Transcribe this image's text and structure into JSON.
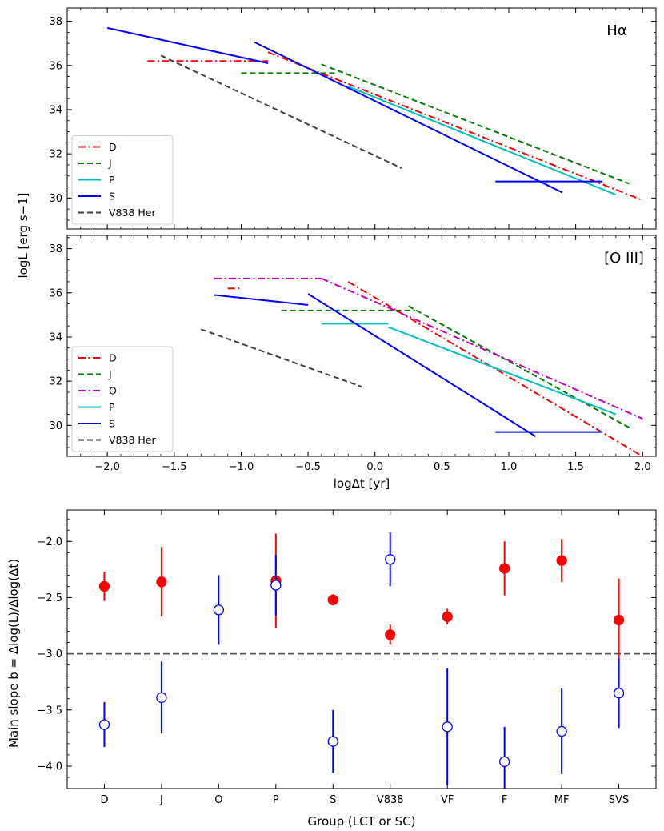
{
  "chart_data": [
    {
      "type": "line",
      "title": "Hα",
      "xlabel": "",
      "ylabel": "logL [erg s−1]",
      "xlim": [
        -2.3,
        2.1
      ],
      "ylim": [
        28.6,
        38.6
      ],
      "xticks": [
        -2.0,
        -1.5,
        -1.0,
        -0.5,
        0.0,
        0.5,
        1.0,
        1.5,
        2.0
      ],
      "yticks": [
        30,
        32,
        34,
        36,
        38
      ],
      "legend_position": "lower-left",
      "legend": [
        "D",
        "J",
        "P",
        "S",
        "V838 Her"
      ],
      "series": [
        {
          "name": "D",
          "color": "#ff0000",
          "dash": "dashdot",
          "segments": [
            [
              [
                -1.7,
                36.2
              ],
              [
                -0.8,
                36.2
              ]
            ],
            [
              [
                -0.8,
                36.6
              ],
              [
                2.0,
                29.9
              ]
            ]
          ]
        },
        {
          "name": "J",
          "color": "#008000",
          "dash": "dashed",
          "segments": [
            [
              [
                -1.0,
                35.65
              ],
              [
                -0.3,
                35.65
              ]
            ],
            [
              [
                -0.4,
                36.05
              ],
              [
                1.9,
                30.65
              ]
            ]
          ]
        },
        {
          "name": "P",
          "color": "#00bfbf",
          "dash": "solid",
          "segments": [
            [
              [
                -0.2,
                35.05
              ],
              [
                1.8,
                30.15
              ]
            ]
          ]
        },
        {
          "name": "S",
          "color": "#0000ff",
          "dash": "solid",
          "segments": [
            [
              [
                -2.0,
                37.7
              ],
              [
                -0.8,
                36.1
              ]
            ],
            [
              [
                -0.9,
                37.05
              ],
              [
                1.4,
                30.25
              ]
            ],
            [
              [
                0.9,
                30.75
              ],
              [
                1.7,
                30.75
              ]
            ]
          ]
        },
        {
          "name": "V838 Her",
          "color": "#404040",
          "dash": "dashed",
          "segments": [
            [
              [
                -1.6,
                36.45
              ],
              [
                0.2,
                31.35
              ]
            ]
          ]
        }
      ]
    },
    {
      "type": "line",
      "title": "[O III]",
      "xlabel": "logΔt [yr]",
      "ylabel": "logL [erg s−1]",
      "xlim": [
        -2.3,
        2.1
      ],
      "ylim": [
        28.6,
        38.6
      ],
      "xticks": [
        -2.0,
        -1.5,
        -1.0,
        -0.5,
        0.0,
        0.5,
        1.0,
        1.5,
        2.0
      ],
      "yticks": [
        30,
        32,
        34,
        36,
        38
      ],
      "legend_position": "lower-left",
      "legend": [
        "D",
        "J",
        "O",
        "P",
        "S",
        "V838 Her"
      ],
      "series": [
        {
          "name": "D",
          "color": "#ff0000",
          "dash": "dashdot",
          "segments": [
            [
              [
                -1.1,
                36.2
              ],
              [
                -1.0,
                36.2
              ]
            ],
            [
              [
                -0.2,
                36.5
              ],
              [
                2.0,
                28.6
              ]
            ]
          ]
        },
        {
          "name": "J",
          "color": "#008000",
          "dash": "dashed",
          "segments": [
            [
              [
                -0.7,
                35.2
              ],
              [
                0.3,
                35.2
              ]
            ],
            [
              [
                0.25,
                35.4
              ],
              [
                1.9,
                29.9
              ]
            ]
          ]
        },
        {
          "name": "O",
          "color": "#bf00bf",
          "dash": "dashdot",
          "segments": [
            [
              [
                -1.2,
                36.65
              ],
              [
                -0.4,
                36.65
              ]
            ],
            [
              [
                -0.4,
                36.65
              ],
              [
                2.0,
                30.3
              ]
            ]
          ]
        },
        {
          "name": "P",
          "color": "#00bfbf",
          "dash": "solid",
          "segments": [
            [
              [
                -0.4,
                34.6
              ],
              [
                0.1,
                34.6
              ]
            ],
            [
              [
                0.1,
                34.45
              ],
              [
                1.8,
                30.5
              ]
            ]
          ]
        },
        {
          "name": "S",
          "color": "#0000ff",
          "dash": "solid",
          "segments": [
            [
              [
                -1.2,
                35.9
              ],
              [
                -0.5,
                35.45
              ]
            ],
            [
              [
                -0.5,
                35.95
              ],
              [
                1.2,
                29.5
              ]
            ],
            [
              [
                0.9,
                29.7
              ],
              [
                1.7,
                29.7
              ]
            ]
          ]
        },
        {
          "name": "V838 Her",
          "color": "#404040",
          "dash": "dashed",
          "segments": [
            [
              [
                -1.3,
                34.35
              ],
              [
                -0.1,
                31.75
              ]
            ]
          ]
        }
      ]
    },
    {
      "type": "scatter",
      "title": "",
      "xlabel": "Group (LCT or SC)",
      "ylabel": "Main slope b = Δlog(L)/Δlog(Δt)",
      "categories": [
        "D",
        "J",
        "O",
        "P",
        "S",
        "V838",
        "VF",
        "F",
        "MF",
        "SVS"
      ],
      "ylim": [
        -4.2,
        -1.72
      ],
      "yticks": [
        -4.0,
        -3.5,
        -3.0,
        -2.5,
        -2.0
      ],
      "reference_line": -3.0,
      "series": [
        {
          "style": "filled",
          "color": "#ff0000",
          "points": [
            {
              "category": "D",
              "y": -2.4,
              "err": 0.13
            },
            {
              "category": "J",
              "y": -2.36,
              "err": 0.31
            },
            {
              "category": "P",
              "y": -2.35,
              "err": 0.42
            },
            {
              "category": "S",
              "y": -2.52,
              "err": 0.05
            },
            {
              "category": "V838",
              "y": -2.83,
              "err": 0.09
            },
            {
              "category": "VF",
              "y": -2.67,
              "err": 0.07
            },
            {
              "category": "F",
              "y": -2.24,
              "err": 0.24
            },
            {
              "category": "MF",
              "y": -2.17,
              "err": 0.19
            },
            {
              "category": "SVS",
              "y": -2.7,
              "err": 0.37
            }
          ]
        },
        {
          "style": "open",
          "color": "#0000ff",
          "points": [
            {
              "category": "D",
              "y": -3.63,
              "err": 0.2
            },
            {
              "category": "J",
              "y": -3.39,
              "err": 0.32
            },
            {
              "category": "O",
              "y": -2.61,
              "err": 0.31
            },
            {
              "category": "P",
              "y": -2.39,
              "err": 0.27
            },
            {
              "category": "S",
              "y": -3.78,
              "err": 0.28
            },
            {
              "category": "V838",
              "y": -2.16,
              "err": 0.24
            },
            {
              "category": "VF",
              "y": -3.65,
              "err": 0.52
            },
            {
              "category": "F",
              "y": -3.96,
              "err": 0.31
            },
            {
              "category": "MF",
              "y": -3.69,
              "err": 0.38
            },
            {
              "category": "SVS",
              "y": -3.35,
              "err": 0.31
            }
          ]
        }
      ]
    }
  ]
}
